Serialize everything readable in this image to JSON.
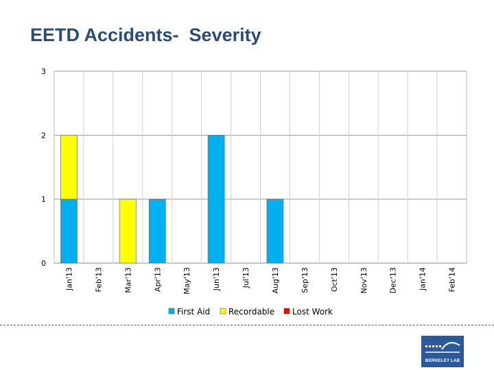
{
  "title": "EETD Accidents-  Severity",
  "colors": {
    "first_aid": "#00b0f0",
    "recordable": "#ffff00",
    "lost_work": "#ff0000",
    "title": "#2a4b7c",
    "logo": "#2a5a9a"
  },
  "logo": {
    "icon": "berkeley-lab-logo-icon",
    "text": "BERKELEY LAB"
  },
  "chart_data": {
    "type": "bar",
    "stacked": true,
    "title": "",
    "xlabel": "",
    "ylabel": "",
    "ylim": [
      0,
      3
    ],
    "yticks": [
      0,
      1,
      2,
      3
    ],
    "grid": true,
    "legend_position": "bottom",
    "categories": [
      "Jan'13",
      "Feb'13",
      "Mar'13",
      "Apr'13",
      "May'13",
      "Jun'13",
      "Jul'13",
      "Aug'13",
      "Sep'13",
      "Oct'13",
      "Nov'13",
      "Dec'13",
      "Jan'14",
      "Feb'14"
    ],
    "series": [
      {
        "name": "First Aid",
        "values": [
          1,
          0,
          0,
          1,
          0,
          2,
          0,
          1,
          0,
          0,
          0,
          0,
          0,
          0
        ]
      },
      {
        "name": "Recordable",
        "values": [
          1,
          0,
          1,
          0,
          0,
          0,
          0,
          0,
          0,
          0,
          0,
          0,
          0,
          0
        ]
      },
      {
        "name": "Lost Work",
        "values": [
          0,
          0,
          0,
          0,
          0,
          0,
          0,
          0,
          0,
          0,
          0,
          0,
          0,
          0
        ]
      }
    ]
  }
}
